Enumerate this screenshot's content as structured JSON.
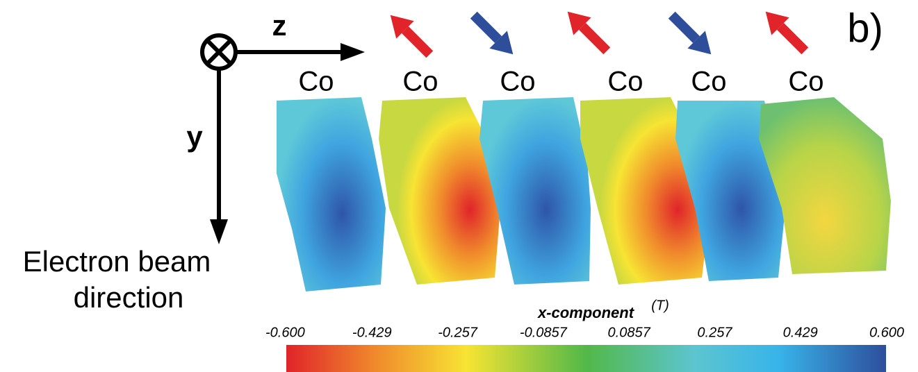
{
  "panel_label": "b)",
  "axes": {
    "z_label": "z",
    "y_label": "y",
    "beam_label": [
      "Electron beam",
      "direction"
    ]
  },
  "layers": [
    "Co",
    "Co",
    "Co",
    "Co",
    "Co",
    "Co"
  ],
  "colorbar": {
    "title": "x-component",
    "unit": "(T)",
    "ticks": [
      "-0.600",
      "-0.429",
      "-0.257",
      "-0.0857",
      "0.0857",
      "0.257",
      "0.429",
      "0.600"
    ]
  }
}
